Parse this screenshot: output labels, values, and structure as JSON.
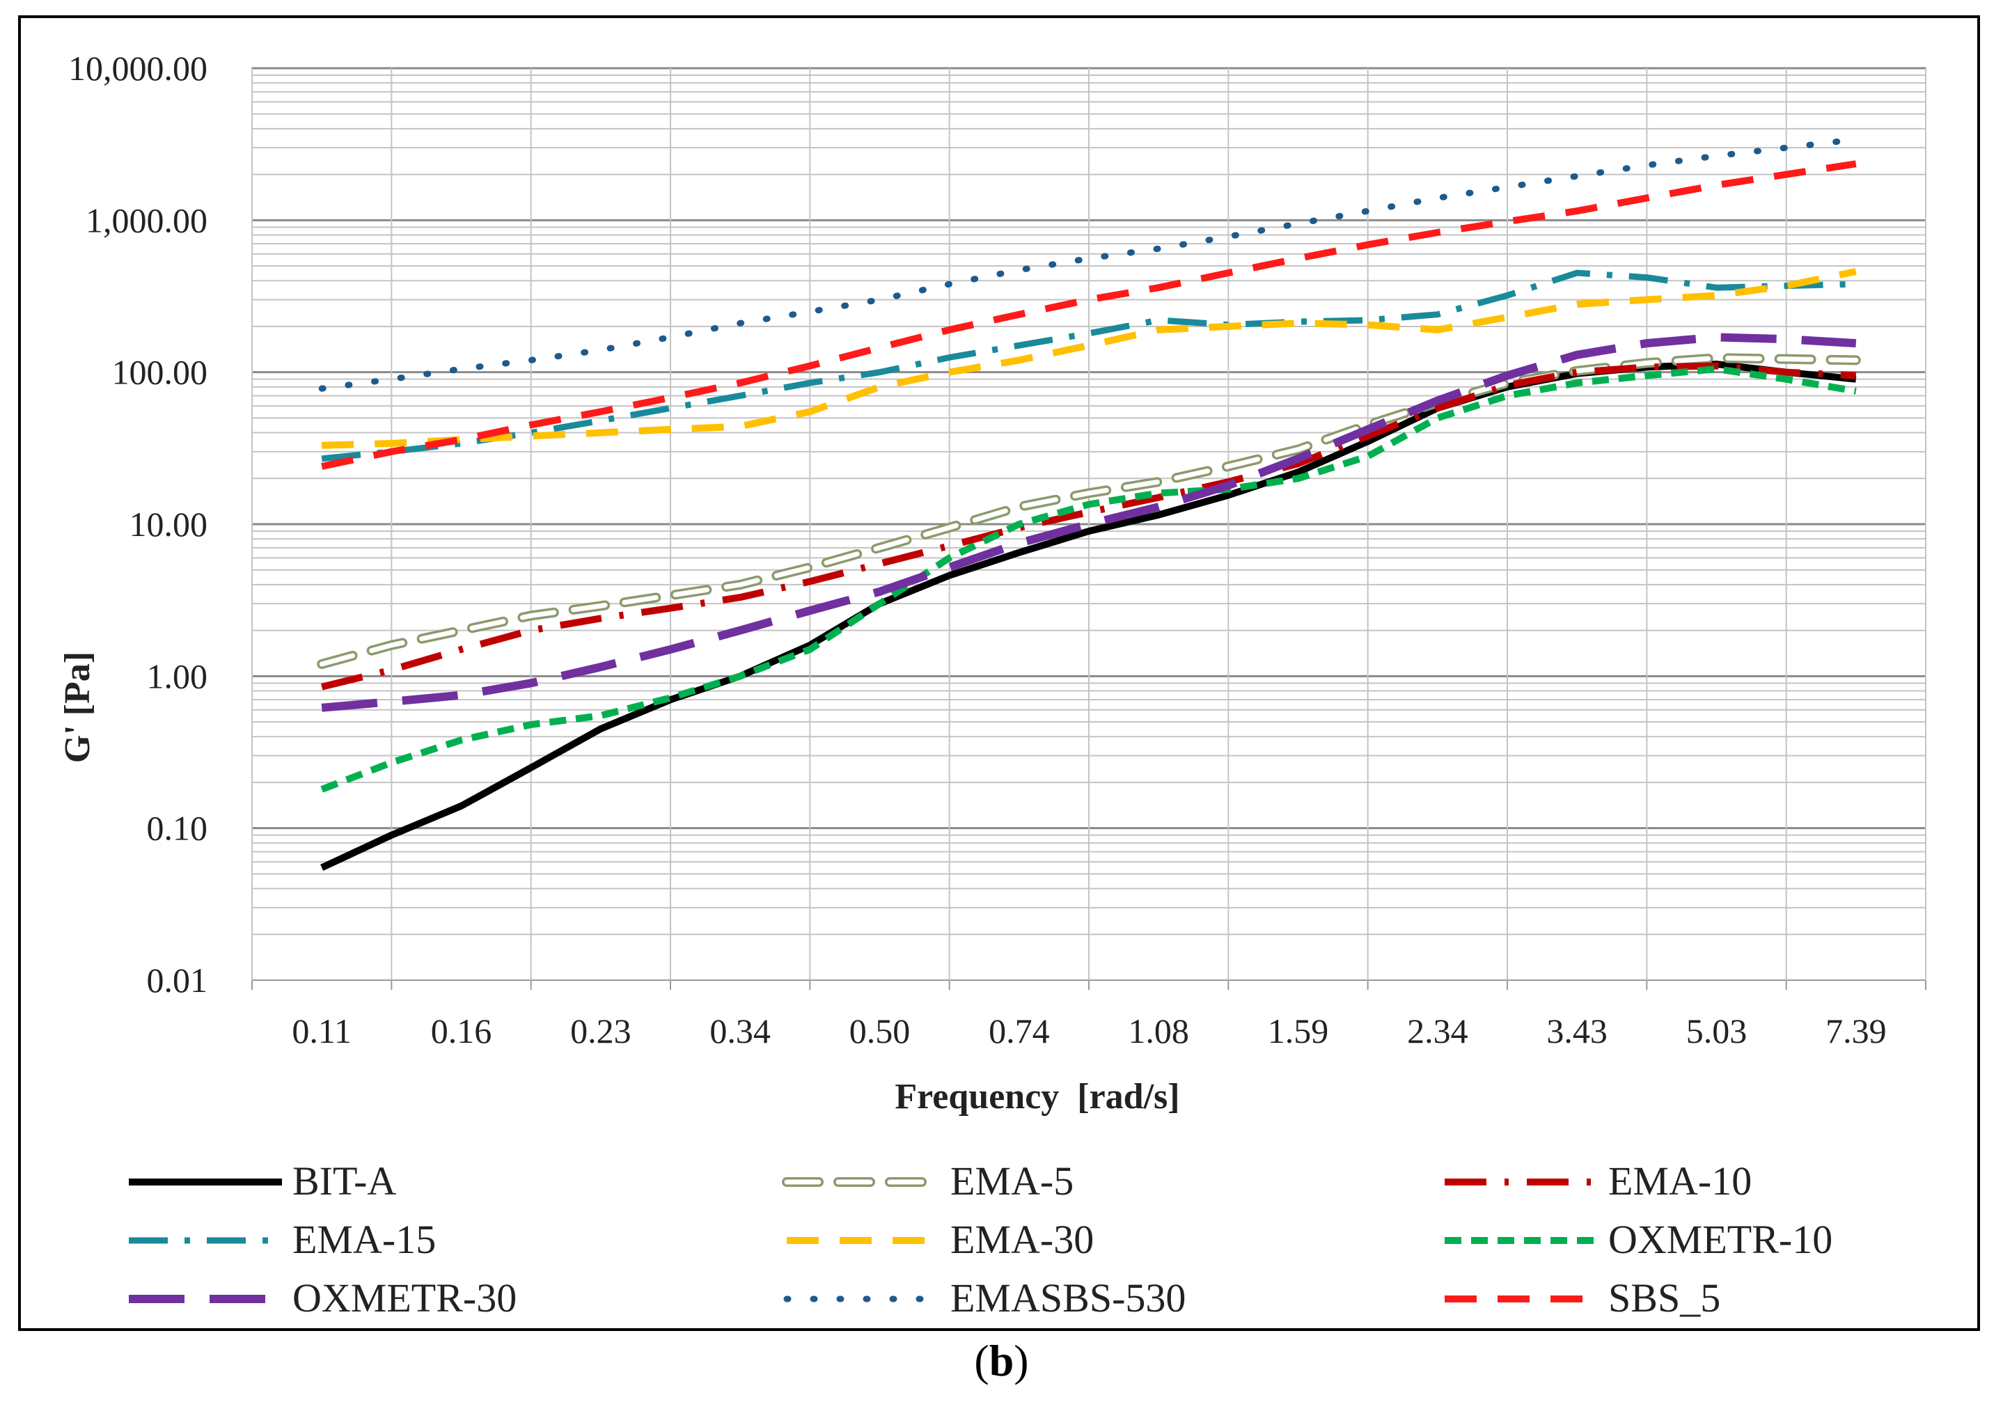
{
  "caption": {
    "open": "(",
    "letter": "b",
    "close": ")"
  },
  "chart_data": {
    "type": "line",
    "title": "",
    "xlabel": "Frequency  [rad/s]",
    "ylabel": "G' [Pa]",
    "yscale": "log",
    "ylim": [
      0.01,
      10000
    ],
    "grid": true,
    "legend_position": "bottom",
    "x_tick_labels": [
      "0.11",
      "0.16",
      "0.23",
      "0.34",
      "0.50",
      "0.74",
      "1.08",
      "1.59",
      "2.34",
      "3.43",
      "5.03",
      "7.39"
    ],
    "y_ticks": [
      0.01,
      0.1,
      1,
      10,
      100,
      1000,
      10000
    ],
    "y_tick_labels": [
      "0.01",
      "0.10",
      "1.00",
      "10.00",
      "100.00",
      "1,000.00",
      "10,000.00"
    ],
    "x": [
      0.11,
      0.13,
      0.16,
      0.19,
      0.23,
      0.28,
      0.34,
      0.41,
      0.5,
      0.61,
      0.74,
      0.9,
      1.08,
      1.31,
      1.59,
      1.93,
      2.34,
      2.83,
      3.43,
      4.16,
      5.03,
      6.1,
      7.39
    ],
    "series": [
      {
        "name": "BIT-A",
        "color": "#000000",
        "dash": "solid",
        "values": [
          0.055,
          0.09,
          0.14,
          0.25,
          0.45,
          0.7,
          1.0,
          1.6,
          3.0,
          4.6,
          6.5,
          9.0,
          11.5,
          15.5,
          22,
          35,
          58,
          80,
          98,
          108,
          113,
          100,
          90
        ]
      },
      {
        "name": "EMA-5",
        "color": "#8c9a6c",
        "dash": "hollow",
        "values": [
          1.2,
          1.6,
          2.0,
          2.5,
          2.9,
          3.4,
          4.0,
          5.2,
          7.0,
          9.5,
          13,
          16,
          19,
          24,
          31,
          45,
          63,
          85,
          102,
          115,
          124,
          122,
          120
        ]
      },
      {
        "name": "EMA-10",
        "color": "#c00000",
        "dash": "dashdot",
        "values": [
          0.85,
          1.1,
          1.5,
          2.0,
          2.4,
          2.8,
          3.3,
          4.2,
          5.5,
          7.2,
          9.5,
          12,
          15,
          19,
          25,
          38,
          58,
          82,
          100,
          108,
          110,
          100,
          95
        ]
      },
      {
        "name": "EMA-15",
        "color": "#1a8a9a",
        "dash": "longdashdot",
        "values": [
          27,
          30,
          34,
          40,
          48,
          58,
          70,
          85,
          100,
          125,
          150,
          180,
          220,
          205,
          215,
          220,
          240,
          320,
          450,
          420,
          360,
          370,
          380
        ]
      },
      {
        "name": "EMA-30",
        "color": "#ffc000",
        "dash": "dash",
        "values": [
          33,
          34,
          36,
          38,
          40,
          42,
          44,
          55,
          80,
          100,
          120,
          150,
          190,
          200,
          210,
          205,
          190,
          230,
          280,
          300,
          320,
          370,
          460
        ]
      },
      {
        "name": "OXMETR-10",
        "color": "#00b050",
        "dash": "shortdash",
        "values": [
          0.18,
          0.27,
          0.38,
          0.48,
          0.55,
          0.72,
          1.0,
          1.5,
          3.0,
          6.0,
          10,
          13.5,
          16,
          17,
          20,
          28,
          50,
          70,
          85,
          95,
          105,
          90,
          75
        ]
      },
      {
        "name": "OXMETR-30",
        "color": "#7030a0",
        "dash": "longdash",
        "values": [
          0.62,
          0.68,
          0.75,
          0.9,
          1.15,
          1.5,
          2.0,
          2.7,
          3.6,
          5.2,
          7.5,
          10,
          13,
          18,
          27,
          42,
          65,
          95,
          130,
          155,
          170,
          165,
          155
        ]
      },
      {
        "name": "EMASBS-530",
        "color": "#1f5a8a",
        "dash": "dot",
        "values": [
          78,
          90,
          105,
          120,
          140,
          170,
          210,
          250,
          300,
          380,
          470,
          560,
          650,
          780,
          950,
          1150,
          1400,
          1650,
          1950,
          2300,
          2650,
          3000,
          3400
        ]
      },
      {
        "name": "SBS_5",
        "color": "#ff1a1a",
        "dash": "dash",
        "values": [
          24,
          30,
          36,
          45,
          55,
          68,
          85,
          110,
          145,
          190,
          240,
          300,
          360,
          450,
          560,
          690,
          830,
          980,
          1150,
          1400,
          1700,
          2000,
          2350
        ]
      }
    ]
  }
}
